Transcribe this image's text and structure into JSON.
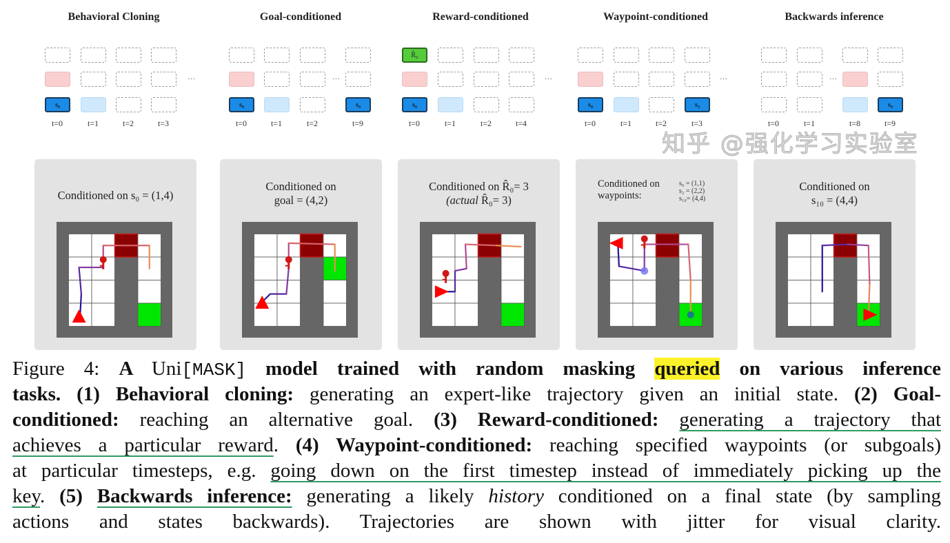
{
  "diagrams": [
    {
      "title": "Behavioral Cloning",
      "cols": [
        [
          "d",
          "p",
          "b"
        ],
        [
          "d",
          "d",
          "lb"
        ],
        [
          "d",
          "d",
          "d"
        ],
        [
          "d",
          "d",
          "d"
        ]
      ],
      "labels_by_col": [
        [
          "",
          "",
          "s₀"
        ],
        [
          "",
          "",
          ""
        ],
        [
          "",
          "",
          ""
        ],
        [
          "",
          "",
          ""
        ]
      ],
      "t": [
        "t=0",
        "t=1",
        "t=2",
        "t=3"
      ]
    },
    {
      "title": "Goal-conditioned",
      "cols": [
        [
          "d",
          "p",
          "b"
        ],
        [
          "d",
          "d",
          "lb"
        ],
        [
          "d",
          "d",
          "d"
        ],
        [
          "d",
          "d",
          "b"
        ]
      ],
      "labels_by_col": [
        [
          "",
          "",
          "s₀"
        ],
        [
          "",
          "",
          ""
        ],
        [
          "",
          "",
          ""
        ],
        [
          "",
          "",
          "s₉"
        ]
      ],
      "t": [
        "t=0",
        "t=1",
        "t=2",
        "t=9"
      ]
    },
    {
      "title": "Reward-conditioned",
      "cols": [
        [
          "g",
          "p",
          "b"
        ],
        [
          "d",
          "d",
          "lb"
        ],
        [
          "d",
          "d",
          "d"
        ],
        [
          "d",
          "d",
          "d"
        ]
      ],
      "labels_by_col": [
        [
          "R̂₀",
          "",
          "s₀"
        ],
        [
          "",
          "",
          ""
        ],
        [
          "",
          "",
          ""
        ],
        [
          "",
          "",
          ""
        ]
      ],
      "t": [
        "t=0",
        "t=1",
        "t=2",
        "t=4"
      ]
    },
    {
      "title": "Waypoint-conditioned",
      "cols": [
        [
          "d",
          "p",
          "b"
        ],
        [
          "d",
          "d",
          "lb"
        ],
        [
          "d",
          "d",
          "d"
        ],
        [
          "d",
          "d",
          "b"
        ]
      ],
      "labels_by_col": [
        [
          "",
          "",
          "s₀"
        ],
        [
          "",
          "",
          ""
        ],
        [
          "",
          "",
          ""
        ],
        [
          "",
          "",
          "s₃"
        ]
      ],
      "t": [
        "t=0",
        "t=1",
        "t=2",
        "t=3"
      ]
    },
    {
      "title": "Backwards inference",
      "cols": [
        [
          "d",
          "d",
          "d"
        ],
        [
          "d",
          "d",
          "d"
        ],
        [
          "d",
          "p",
          "lb"
        ],
        [
          "d",
          "d",
          "b"
        ]
      ],
      "labels_by_col": [
        [
          "",
          "",
          ""
        ],
        [
          "",
          "",
          ""
        ],
        [
          "",
          "",
          ""
        ],
        [
          "",
          "",
          "s₉"
        ]
      ],
      "t": [
        "t=0",
        "t=1",
        "t=8",
        "t=9"
      ]
    }
  ],
  "dots": "···",
  "panels": [
    {
      "line1": "Conditioned on s₀ = (1,4)",
      "line2": ""
    },
    {
      "line1": "Conditioned on",
      "line2": "goal = (4,2)"
    },
    {
      "line1": "Conditioned on  R̂₀= 3",
      "line2_italic": "(actual",
      "line2": "  R̂₀= 3)"
    },
    {
      "line1": "Conditioned on",
      "line2": "waypoints:",
      "waypoints": [
        "s₀ = (1,1)",
        "s₂ = (2,2)",
        "s₁₀= (4,4)"
      ]
    },
    {
      "line1": "Conditioned on",
      "line2": "s₁₀ = (4,4)"
    }
  ],
  "caption": {
    "lines": [
      [
        {
          "t": "Figure 4:  ",
          "s": ""
        },
        {
          "t": "A ",
          "s": "b"
        },
        {
          "t": "Uni",
          "s": ""
        },
        {
          "t": "[MASK]",
          "s": "m"
        },
        {
          "t": " model trained with random masking ",
          "s": "b"
        },
        {
          "t": "queried",
          "s": "hl"
        },
        {
          "t": " on various inference",
          "s": "b"
        }
      ],
      [
        {
          "t": "tasks. (1) Behavioral cloning: ",
          "s": "b"
        },
        {
          "t": "generating an expert-like trajectory given an initial state. ",
          "s": ""
        },
        {
          "t": "(2) Goal-",
          "s": "b"
        }
      ],
      [
        {
          "t": "conditioned: ",
          "s": "b"
        },
        {
          "t": "reaching an alternative goal.  ",
          "s": ""
        },
        {
          "t": "(3) Reward-conditioned:  ",
          "s": "b"
        },
        {
          "t": "generating a trajectory that",
          "s": "u"
        }
      ],
      [
        {
          "t": "achieves a particular reward",
          "s": "u"
        },
        {
          "t": ". ",
          "s": ""
        },
        {
          "t": "(4) Waypoint-conditioned: ",
          "s": "b"
        },
        {
          "t": "reaching specified waypoints (or subgoals)",
          "s": ""
        }
      ],
      [
        {
          "t": "at particular timesteps, e.g. ",
          "s": ""
        },
        {
          "t": "going down on the first timestep instead of immediately picking up the",
          "s": "u"
        }
      ],
      [
        {
          "t": "key",
          "s": "u"
        },
        {
          "t": ". ",
          "s": ""
        },
        {
          "t": "(5) ",
          "s": "b"
        },
        {
          "t": "Backwards inference:",
          "s": "ub"
        },
        {
          "t": " generating a likely ",
          "s": ""
        },
        {
          "t": "history",
          "s": "i"
        },
        {
          "t": " conditioned on a final state (by sampling",
          "s": ""
        }
      ],
      [
        {
          "t": "actions and states backwards). Trajectories are shown with jitter for visual clarity.",
          "s": ""
        }
      ]
    ]
  },
  "watermark": "知乎 @强化学习实验室",
  "colors": {
    "wall": "#666666",
    "door": "#8b0000",
    "goal": "#00e600",
    "agent": "#ff0000",
    "highlight": "#fbf22a",
    "underline": "#2f9a63"
  }
}
